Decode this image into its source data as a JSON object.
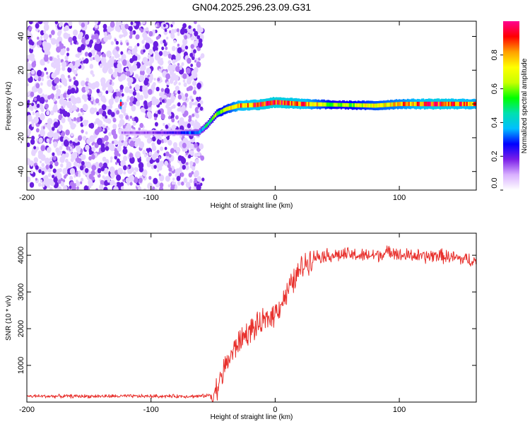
{
  "title": "GN04.2025.296.23.09.G31",
  "chart_data": [
    {
      "type": "heatmap",
      "panel": "spectrogram",
      "xlabel": "Height of straight line (km)",
      "ylabel": "Frequency (Hz)",
      "xlim": [
        -200,
        162
      ],
      "ylim": [
        -51,
        49
      ],
      "xticks": [
        -200,
        -100,
        0,
        100
      ],
      "xtick_labels": [
        "-200",
        "-100",
        "0",
        "100"
      ],
      "yticks": [
        -40,
        -20,
        0,
        20,
        40
      ],
      "ytick_labels": [
        "-40",
        "-20",
        "0",
        "20",
        "40"
      ],
      "noise_region_x": [
        -200,
        -58
      ],
      "ridge": {
        "x": [
          -125,
          -100,
          -80,
          -62,
          -55,
          -48,
          -40,
          -30,
          -15,
          0,
          20,
          50,
          80,
          100,
          130,
          162
        ],
        "freq": [
          -17,
          -17,
          -17,
          -17,
          -12,
          -6,
          -3,
          -1,
          -0.5,
          1,
          0,
          -0.5,
          -1,
          0,
          0,
          0
        ],
        "amplitude": [
          0.12,
          0.15,
          0.22,
          0.35,
          0.45,
          0.55,
          0.65,
          0.8,
          0.85,
          0.9,
          0.85,
          0.55,
          0.7,
          0.75,
          0.88,
          0.78
        ]
      },
      "colorbar": {
        "label": "Normalized spectral amplitude",
        "range": [
          0,
          1
        ],
        "ticks": [
          0.0,
          0.2,
          0.4,
          0.6,
          0.8
        ],
        "tick_labels": [
          "0.0",
          "0.2",
          "0.4",
          "0.6",
          "0.8"
        ],
        "colormap": [
          "#ffffff",
          "#d9b0ff",
          "#7b1fe8",
          "#0000ff",
          "#00bfff",
          "#00e0b0",
          "#00ff00",
          "#c8ff00",
          "#ffff00",
          "#ffa000",
          "#ff0000",
          "#ff0090"
        ]
      }
    },
    {
      "type": "line",
      "panel": "snr",
      "xlabel": "Height of straight line (km)",
      "ylabel": "SNR (10 * v/v)",
      "xlim": [
        -200,
        162
      ],
      "ylim": [
        0,
        4600
      ],
      "xticks": [
        -200,
        -100,
        0,
        100
      ],
      "xtick_labels": [
        "-200",
        "-100",
        "0",
        "100"
      ],
      "yticks": [
        1000,
        2000,
        3000,
        4000
      ],
      "ytick_labels": [
        "1000",
        "2000",
        "3000",
        "4000"
      ],
      "color": "#e8302c",
      "series": [
        {
          "name": "SNR",
          "x": [
            -200,
            -150,
            -100,
            -60,
            -50,
            -45,
            -40,
            -35,
            -30,
            -25,
            -20,
            -15,
            -10,
            -5,
            0,
            5,
            10,
            15,
            20,
            25,
            30,
            40,
            50,
            60,
            70,
            80,
            90,
            95,
            100,
            110,
            120,
            130,
            140,
            150,
            162
          ],
          "values": [
            160,
            160,
            160,
            160,
            200,
            500,
            1000,
            1300,
            1600,
            1800,
            1950,
            2050,
            2150,
            2300,
            2450,
            2700,
            3000,
            3300,
            3600,
            3800,
            3950,
            4000,
            4000,
            4020,
            3980,
            4000,
            4050,
            4150,
            3980,
            4000,
            3950,
            4000,
            3950,
            3900,
            3850
          ]
        }
      ]
    }
  ]
}
